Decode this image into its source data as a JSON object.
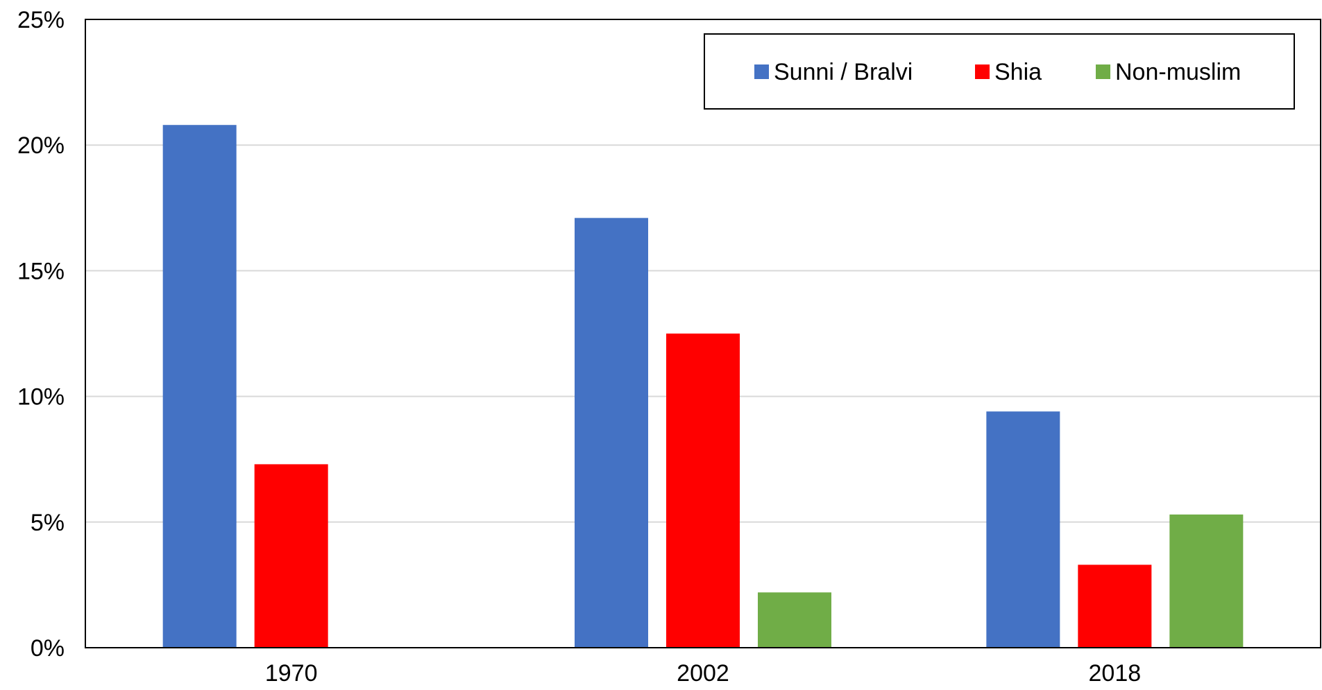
{
  "chart_data": {
    "type": "bar",
    "categories": [
      "1970",
      "2002",
      "2018"
    ],
    "series": [
      {
        "name": "Sunni / Bralvi",
        "color": "#4472C4",
        "values": [
          20.8,
          17.1,
          9.4
        ]
      },
      {
        "name": "Shia",
        "color": "#FF0000",
        "values": [
          7.3,
          12.5,
          3.3
        ]
      },
      {
        "name": "Non-muslim",
        "color": "#70AD47",
        "values": [
          null,
          2.2,
          5.3
        ]
      }
    ],
    "ylim": [
      0,
      25
    ],
    "yticks": [
      0,
      5,
      10,
      15,
      20,
      25
    ],
    "ytick_labels": [
      "0%",
      "5%",
      "10%",
      "15%",
      "20%",
      "25%"
    ],
    "grid": "horizontal",
    "legend_position": "top-right",
    "title": "",
    "xlabel": "",
    "ylabel": ""
  }
}
